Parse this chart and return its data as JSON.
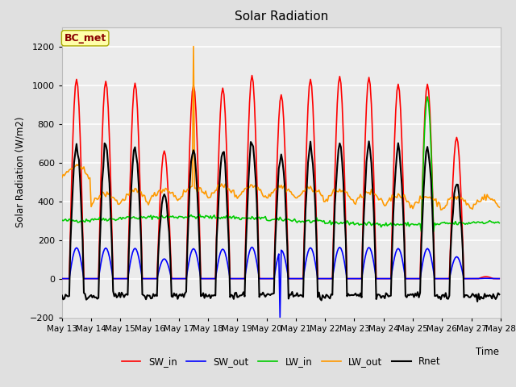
{
  "title": "Solar Radiation",
  "ylabel": "Solar Radiation (W/m2)",
  "xlabel": "Time",
  "annotation": "BC_met",
  "ylim": [
    -200,
    1300
  ],
  "yticks": [
    -200,
    0,
    200,
    400,
    600,
    800,
    1000,
    1200
  ],
  "xlim": [
    13,
    28
  ],
  "x_tick_labels": [
    "May 13",
    "May 14",
    "May 15",
    "May 16",
    "May 17",
    "May 18",
    "May 19",
    "May 20",
    "May 21",
    "May 22",
    "May 23",
    "May 24",
    "May 25",
    "May 26",
    "May 27",
    "May 28"
  ],
  "line_colors": {
    "SW_in": "#ff0000",
    "SW_out": "#0000ff",
    "LW_in": "#00cc00",
    "LW_out": "#ff9900",
    "Rnet": "#000000"
  },
  "line_widths": {
    "SW_in": 1.2,
    "SW_out": 1.2,
    "LW_in": 1.2,
    "LW_out": 1.2,
    "Rnet": 1.5
  },
  "bg_color": "#e0e0e0",
  "plot_bg_color": "#ebebeb",
  "grid_color": "#ffffff",
  "legend_entries": [
    "SW_in",
    "SW_out",
    "LW_in",
    "LW_out",
    "Rnet"
  ]
}
